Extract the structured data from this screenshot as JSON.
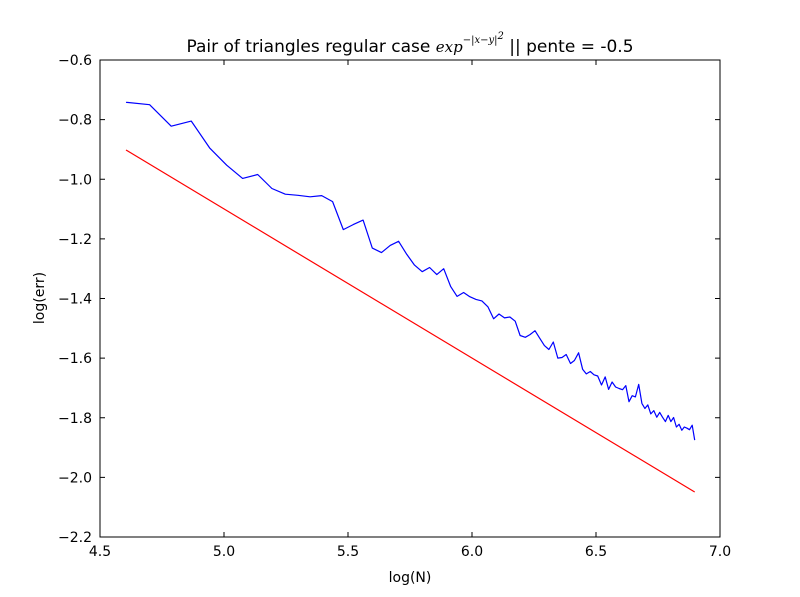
{
  "chart_data": {
    "type": "line",
    "title": {
      "prefix": "Pair of triangles regular case ",
      "math_base": "exp",
      "math_exponent": "−|x−y|",
      "math_exponent_power": "2",
      "suffix": " || pente = -0.5"
    },
    "xlabel": "log(N)",
    "ylabel": "log(err)",
    "xlim": [
      4.5,
      7.0
    ],
    "ylim": [
      -2.2,
      -0.6
    ],
    "xticks": [
      4.5,
      5.0,
      5.5,
      6.0,
      6.5,
      7.0
    ],
    "xtick_labels": [
      "4.5",
      "5.0",
      "5.5",
      "6.0",
      "6.5",
      "7.0"
    ],
    "yticks": [
      -2.2,
      -2.0,
      -1.8,
      -1.6,
      -1.4,
      -1.2,
      -1.0,
      -0.8,
      -0.6
    ],
    "ytick_labels": [
      "−2.2",
      "−2.0",
      "−1.8",
      "−1.6",
      "−1.4",
      "−1.2",
      "−1.0",
      "−0.8",
      "−0.6"
    ],
    "grid": false,
    "legend": "none",
    "series": [
      {
        "color": "#0000ff",
        "x": [
          4.605,
          4.7,
          4.787,
          4.868,
          4.942,
          5.011,
          5.075,
          5.136,
          5.193,
          5.247,
          5.298,
          5.347,
          5.394,
          5.438,
          5.481,
          5.521,
          5.561,
          5.598,
          5.635,
          5.67,
          5.704,
          5.737,
          5.768,
          5.799,
          5.829,
          5.858,
          5.886,
          5.914,
          5.94,
          5.966,
          5.991,
          6.016,
          6.04,
          6.064,
          6.087,
          6.109,
          6.131,
          6.153,
          6.174,
          6.194,
          6.215,
          6.234,
          6.254,
          6.273,
          6.292,
          6.31,
          6.328,
          6.346,
          6.363,
          6.38,
          6.397,
          6.413,
          6.43,
          6.446,
          6.461,
          6.477,
          6.492,
          6.507,
          6.522,
          6.537,
          6.551,
          6.565,
          6.579,
          6.593,
          6.607,
          6.62,
          6.633,
          6.646,
          6.659,
          6.672,
          6.685,
          6.697,
          6.709,
          6.721,
          6.733,
          6.745,
          6.757,
          6.768,
          6.78,
          6.791,
          6.802,
          6.813,
          6.824,
          6.835,
          6.846,
          6.856,
          6.867,
          6.877,
          6.888,
          6.898
        ],
        "y": [
          -0.742,
          -0.75,
          -0.822,
          -0.805,
          -0.895,
          -0.953,
          -0.997,
          -0.984,
          -1.031,
          -1.05,
          -1.054,
          -1.059,
          -1.055,
          -1.075,
          -1.169,
          -1.152,
          -1.137,
          -1.231,
          -1.246,
          -1.222,
          -1.208,
          -1.252,
          -1.288,
          -1.31,
          -1.296,
          -1.32,
          -1.3,
          -1.36,
          -1.393,
          -1.38,
          -1.394,
          -1.403,
          -1.408,
          -1.428,
          -1.468,
          -1.452,
          -1.465,
          -1.462,
          -1.476,
          -1.524,
          -1.53,
          -1.521,
          -1.508,
          -1.533,
          -1.558,
          -1.571,
          -1.546,
          -1.6,
          -1.598,
          -1.588,
          -1.618,
          -1.608,
          -1.582,
          -1.637,
          -1.653,
          -1.645,
          -1.656,
          -1.66,
          -1.69,
          -1.663,
          -1.705,
          -1.68,
          -1.697,
          -1.702,
          -1.706,
          -1.692,
          -1.746,
          -1.726,
          -1.73,
          -1.688,
          -1.752,
          -1.769,
          -1.757,
          -1.787,
          -1.776,
          -1.798,
          -1.782,
          -1.798,
          -1.813,
          -1.792,
          -1.813,
          -1.799,
          -1.831,
          -1.822,
          -1.842,
          -1.831,
          -1.835,
          -1.84,
          -1.825,
          -1.875
        ]
      },
      {
        "color": "#ff0000",
        "x": [
          4.605,
          6.898
        ],
        "y": [
          -0.902,
          -2.049
        ]
      }
    ]
  }
}
